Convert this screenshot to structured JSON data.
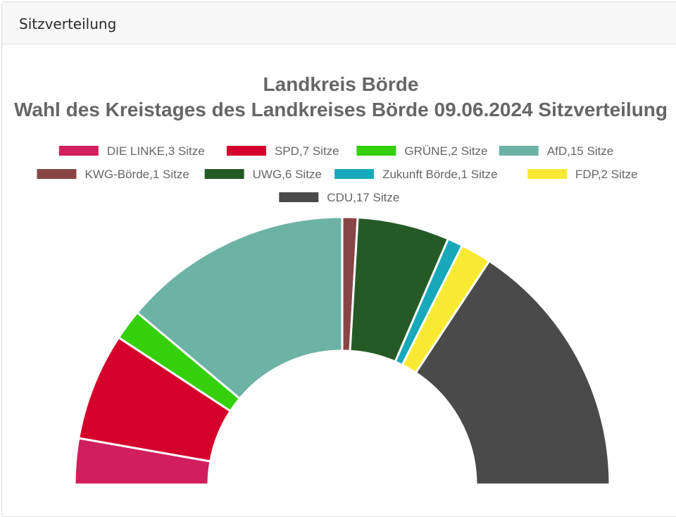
{
  "card": {
    "header_title": "Sitzverteilung"
  },
  "chart_data": {
    "type": "pie",
    "variant": "semicircle-doughnut",
    "title": [
      "Landkreis Börde",
      "Wahl des Kreistages des Landkreises Börde 09.06.2024 Sitzverteilung"
    ],
    "legend_position": "top",
    "series": [
      {
        "name": "DIE LINKE",
        "value": 3,
        "label": "DIE LINKE,3 Sitze",
        "color": "#d01f5c"
      },
      {
        "name": "SPD",
        "value": 7,
        "label": "SPD,7 Sitze",
        "color": "#d6002c"
      },
      {
        "name": "GRÜNE",
        "value": 2,
        "label": "GRÜNE,2 Sitze",
        "color": "#35d00c"
      },
      {
        "name": "AfD",
        "value": 15,
        "label": "AfD,15 Sitze",
        "color": "#6db3a5"
      },
      {
        "name": "KWG-Börde",
        "value": 1,
        "label": "KWG-Börde,1 Sitze",
        "color": "#894545"
      },
      {
        "name": "UWG",
        "value": 6,
        "label": "UWG,6 Sitze",
        "color": "#255a27"
      },
      {
        "name": "Zukunft Börde",
        "value": 1,
        "label": "Zukunft Börde,1 Sitze",
        "color": "#17a8bb"
      },
      {
        "name": "FDP",
        "value": 2,
        "label": "FDP,2 Sitze",
        "color": "#f8ea33"
      },
      {
        "name": "CDU",
        "value": 17,
        "label": "CDU,17 Sitze",
        "color": "#4a4a4a"
      }
    ]
  }
}
